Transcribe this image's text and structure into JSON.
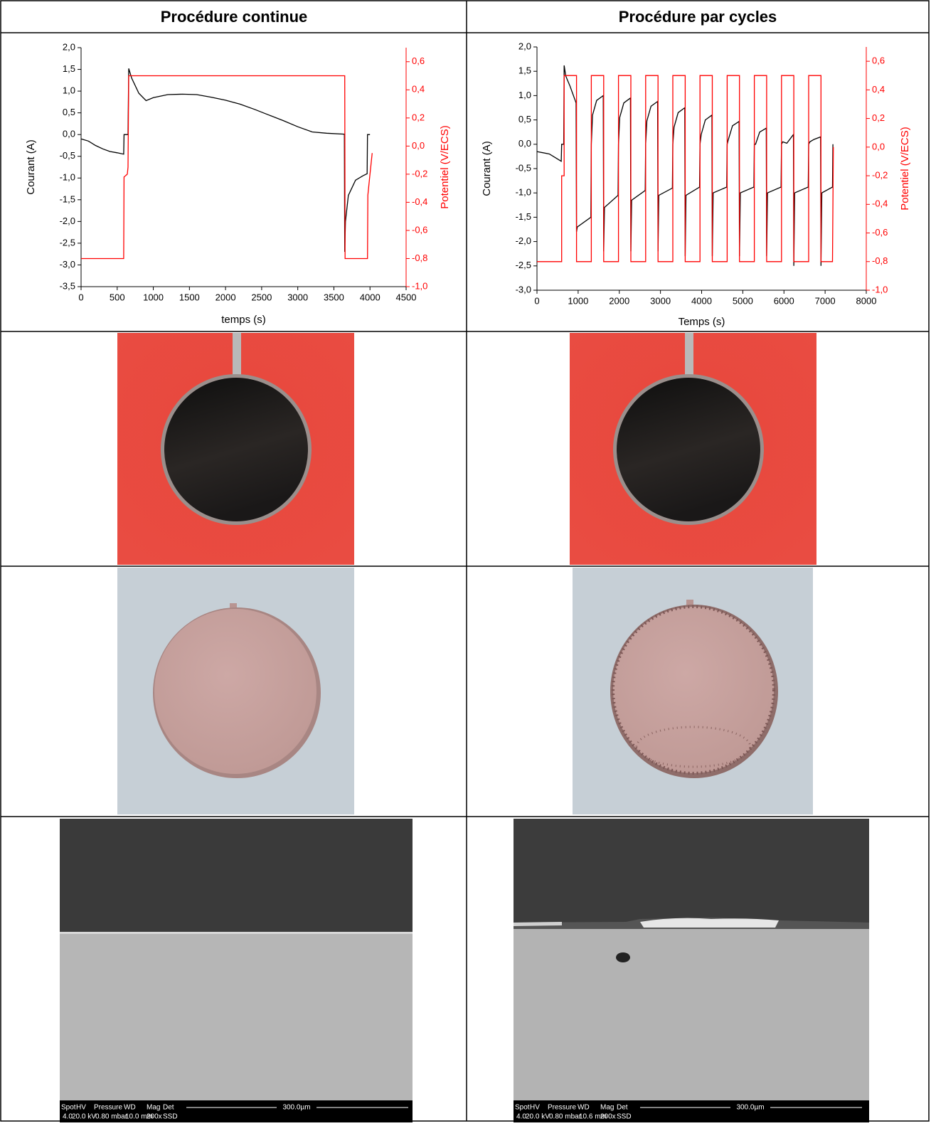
{
  "table": {
    "headers": [
      "Procédure continue",
      "Procédure par cycles"
    ],
    "charts": [
      {
        "type": "line",
        "xlabel": "temps (s)",
        "ylabel": "Courant (A)",
        "y2label": "Potentiel (V/ECS)",
        "xlim": [
          0,
          4500
        ],
        "xticks": [
          0,
          500,
          1000,
          1500,
          2000,
          2500,
          3000,
          3500,
          4000,
          4500
        ],
        "ylim": [
          -3.5,
          2
        ],
        "yticks": [
          {
            "value": 2,
            "label": "2,0"
          },
          {
            "value": 1.5,
            "label": "1,5"
          },
          {
            "value": 1,
            "label": "1,0"
          },
          {
            "value": 0.5,
            "label": "0,5"
          },
          {
            "value": 0,
            "label": "0,0"
          },
          {
            "value": -0.5,
            "label": "-0,5"
          },
          {
            "value": -1,
            "label": "-1,0"
          },
          {
            "value": -1.5,
            "label": "-1,5"
          },
          {
            "value": -2,
            "label": "-2,0"
          },
          {
            "value": -2.5,
            "label": "-2,5"
          },
          {
            "value": -3,
            "label": "-3,0"
          },
          {
            "value": -3.5,
            "label": "-3,5"
          }
        ],
        "y2lim": [
          -1,
          0.7
        ],
        "y2ticks": [
          {
            "value": 0.6,
            "label": "0,6"
          },
          {
            "value": 0.4,
            "label": "0,4"
          },
          {
            "value": 0.2,
            "label": "0,2"
          },
          {
            "value": 0,
            "label": "0,0"
          },
          {
            "value": -0.2,
            "label": "-0,2"
          },
          {
            "value": -0.4,
            "label": "-0,4"
          },
          {
            "value": -0.6,
            "label": "-0,6"
          },
          {
            "value": -0.8,
            "label": "-0,8"
          },
          {
            "value": -1,
            "label": "-1,0"
          }
        ],
        "series": [
          {
            "color": "#000000",
            "x": [
              0,
              100,
              200,
              300,
              400,
              500,
              590,
              595,
              650,
              660,
              700,
              800,
              900,
              1000,
              1200,
              1400,
              1600,
              1800,
              2000,
              2200,
              2400,
              2600,
              2800,
              3000,
              3200,
              3400,
              3645,
              3650,
              3660,
              3700,
              3800,
              3900,
              3960,
              3965,
              4000
            ],
            "values": [
              -0.1,
              -0.15,
              -0.25,
              -0.33,
              -0.39,
              -0.42,
              -0.45,
              0,
              0,
              1.52,
              1.3,
              0.95,
              0.78,
              0.85,
              0.92,
              0.93,
              0.92,
              0.86,
              0.79,
              0.7,
              0.58,
              0.45,
              0.32,
              0.18,
              0.06,
              0.03,
              0.01,
              -2.7,
              -2.0,
              -1.4,
              -1.05,
              -0.95,
              -0.9,
              0,
              0
            ]
          },
          {
            "color": "#ff0000",
            "axis": "y2",
            "x": [
              0,
              590,
              595,
              640,
              650,
              660,
              3650,
              3655,
              3965,
              3970,
              4000,
              4030
            ],
            "values": [
              -0.8,
              -0.8,
              -0.22,
              -0.2,
              -0.15,
              0.5,
              0.5,
              -0.8,
              -0.8,
              -0.35,
              -0.2,
              -0.05
            ]
          }
        ]
      },
      {
        "type": "line",
        "xlabel": "Temps (s)",
        "ylabel": "Courant (A)",
        "y2label": "Potentiel (V/ECS)",
        "xlim": [
          0,
          8000
        ],
        "xticks": [
          0,
          1000,
          2000,
          3000,
          4000,
          5000,
          6000,
          7000,
          8000
        ],
        "ylim": [
          -3,
          2
        ],
        "yticks": [
          {
            "value": 2,
            "label": "2,0"
          },
          {
            "value": 1.5,
            "label": "1,5"
          },
          {
            "value": 1,
            "label": "1,0"
          },
          {
            "value": 0.5,
            "label": "0,5"
          },
          {
            "value": 0,
            "label": "0,0"
          },
          {
            "value": -0.5,
            "label": "-0,5"
          },
          {
            "value": -1,
            "label": "-1,0"
          },
          {
            "value": -1.5,
            "label": "-1,5"
          },
          {
            "value": -2,
            "label": "-2,0"
          },
          {
            "value": -2.5,
            "label": "-2,5"
          },
          {
            "value": -3,
            "label": "-3,0"
          }
        ],
        "y2lim": [
          -1,
          0.7
        ],
        "y2ticks": [
          {
            "value": 0.6,
            "label": "0,6"
          },
          {
            "value": 0.4,
            "label": "0,4"
          },
          {
            "value": 0.2,
            "label": "0,2"
          },
          {
            "value": 0,
            "label": "0,0"
          },
          {
            "value": -0.2,
            "label": "-0,2"
          },
          {
            "value": -0.4,
            "label": "-0,4"
          },
          {
            "value": -0.6,
            "label": "-0,6"
          },
          {
            "value": -0.8,
            "label": "-0,8"
          },
          {
            "value": -1,
            "label": "-1,0"
          }
        ],
        "series": [
          {
            "color": "#000000",
            "x": [
              0,
              300,
              590,
              600,
              650,
              660,
              700,
              800,
              950,
              960,
              980,
              1310,
              1320,
              1350,
              1450,
              1610,
              1620,
              1640,
              1970,
              1980,
              2010,
              2110,
              2270,
              2280,
              2300,
              2630,
              2640,
              2670,
              2770,
              2930,
              2940,
              2960,
              3290,
              3300,
              3330,
              3430,
              3590,
              3600,
              3620,
              3950,
              3960,
              3990,
              4090,
              4250,
              4260,
              4280,
              4610,
              4620,
              4650,
              4750,
              4910,
              4920,
              4940,
              5270,
              5280,
              5310,
              5410,
              5570,
              5580,
              5600,
              5930,
              5940,
              5970,
              6070,
              6230,
              6240,
              6260,
              6590,
              6600,
              6630,
              6730,
              6890,
              6900,
              6920,
              7180,
              7190
            ],
            "values": [
              -0.15,
              -0.2,
              -0.35,
              0,
              0,
              1.62,
              1.4,
              1.2,
              0.85,
              -1.8,
              -1.7,
              -1.5,
              0,
              0.6,
              0.9,
              1.0,
              -2.2,
              -1.3,
              -1.05,
              0,
              0.55,
              0.85,
              0.95,
              -2.2,
              -1.15,
              -0.95,
              0,
              0.48,
              0.78,
              0.88,
              -2.2,
              -1.05,
              -0.9,
              0,
              0.35,
              0.65,
              0.75,
              -2.3,
              -1.05,
              -0.88,
              0,
              0.2,
              0.5,
              0.6,
              -2.3,
              -1.0,
              -0.88,
              0,
              0.1,
              0.38,
              0.47,
              -2.3,
              -1.0,
              -0.88,
              0,
              0,
              0.25,
              0.33,
              -2.3,
              -1.0,
              -0.88,
              0,
              0.05,
              0.02,
              0.2,
              -2.5,
              -1.0,
              -0.88,
              0,
              0.05,
              0.1,
              0.15,
              -2.5,
              -1.0,
              -0.88,
              0
            ]
          },
          {
            "color": "#ff0000",
            "axis": "y2",
            "x": [
              0,
              600,
              600,
              660,
              660,
              960,
              960,
              1320,
              1320,
              1620,
              1620,
              1980,
              1980,
              2280,
              2280,
              2640,
              2640,
              2940,
              2940,
              3300,
              3300,
              3600,
              3600,
              3960,
              3960,
              4260,
              4260,
              4620,
              4620,
              4920,
              4920,
              5280,
              5280,
              5580,
              5580,
              5940,
              5940,
              6240,
              6240,
              6600,
              6600,
              6900,
              6900,
              7180,
              7200
            ],
            "values": [
              -0.8,
              -0.8,
              -0.2,
              -0.2,
              0.5,
              0.5,
              -0.8,
              -0.8,
              0.5,
              0.5,
              -0.8,
              -0.8,
              0.5,
              0.5,
              -0.8,
              -0.8,
              0.5,
              0.5,
              -0.8,
              -0.8,
              0.5,
              0.5,
              -0.8,
              -0.8,
              0.5,
              0.5,
              -0.8,
              -0.8,
              0.5,
              0.5,
              -0.8,
              -0.8,
              0.5,
              0.5,
              -0.8,
              -0.8,
              0.5,
              0.5,
              -0.8,
              -0.8,
              0.5,
              0.5,
              -0.8,
              -0.8,
              0
            ]
          }
        ]
      }
    ],
    "sem": [
      {
        "fields": [
          "Spot",
          "HV",
          "Pressure",
          "WD",
          "Mag",
          "Det"
        ],
        "values": [
          "4.0",
          "20.0 kV",
          "0.80  mbar",
          "10.0 mm",
          "200x",
          "SSD"
        ],
        "scale": "300.0µm"
      },
      {
        "fields": [
          "Spot",
          "HV",
          "Pressure",
          "WD",
          "Mag",
          "Det"
        ],
        "values": [
          "4.0",
          "20.0 kV",
          "0.80  mbar",
          "10.6 mm",
          "200x",
          "SSD"
        ],
        "scale": "300.0µm"
      }
    ]
  }
}
